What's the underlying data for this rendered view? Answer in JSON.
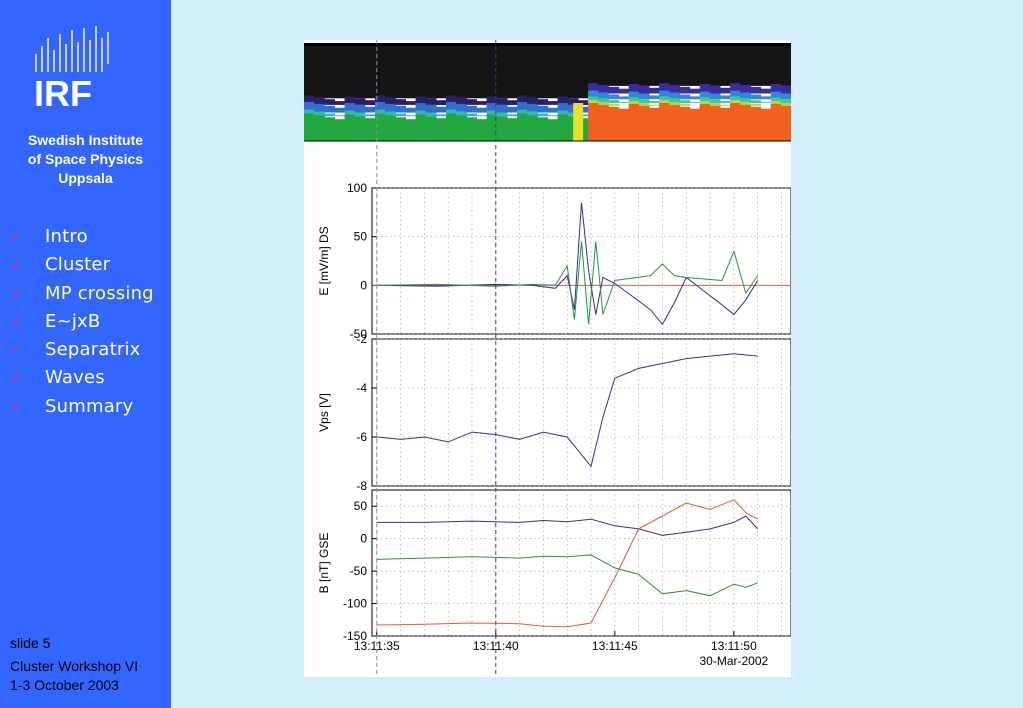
{
  "sidebar": {
    "logo_text": "IRF",
    "institute_lines": [
      "Swedish Institute",
      "of Space Physics",
      "Uppsala"
    ],
    "nav": [
      {
        "label": "Intro",
        "active": false
      },
      {
        "label": "Cluster",
        "active": false
      },
      {
        "label": "MP crossing",
        "active": true
      },
      {
        "label": "E~jxB",
        "active": false
      },
      {
        "label": "Separatrix",
        "active": false
      },
      {
        "label": "Waves",
        "active": false
      },
      {
        "label": "Summary",
        "active": false
      }
    ],
    "check_icon": "check-icon",
    "slide_label": "slide 5",
    "event": "Cluster Workshop VI",
    "dates": "1-3 October 2003"
  },
  "colors": {
    "sidebar_bg": "#3366ff",
    "page_bg": "#d4eefb",
    "active_nav": "#ffff66",
    "check": "#ff2b2b",
    "series_blue": "#3a2c9c",
    "series_green": "#1e9a3a",
    "series_orange": "#ee5a1e"
  },
  "chart_data": [
    {
      "type": "heatmap",
      "title": "",
      "xlabel": "",
      "ylabel": "",
      "x_range_s": [
        0,
        1
      ],
      "description_bands": [
        "black background",
        "green band",
        "red/orange band after crossing"
      ],
      "crossing_fraction": 0.565
    },
    {
      "type": "line",
      "ylabel": "E [mV/m] DS",
      "ylim": [
        -50,
        100
      ],
      "yticks": [
        100,
        50,
        0,
        -50
      ],
      "series": [
        {
          "color": "blue",
          "x": [
            35,
            37.5,
            40,
            41.5,
            42.5,
            43.0,
            43.3,
            43.6,
            43.9,
            44.2,
            44.5,
            45,
            46.5,
            47,
            47.5,
            48,
            49.5,
            50,
            50.5,
            51
          ],
          "y": [
            0,
            -1,
            1,
            0,
            -3,
            10,
            -25,
            85,
            15,
            -30,
            8,
            2,
            -25,
            -40,
            -18,
            8,
            -20,
            -30,
            -15,
            5
          ]
        },
        {
          "color": "green",
          "x": [
            35,
            37.5,
            40,
            41.5,
            42.5,
            43.0,
            43.3,
            43.6,
            43.9,
            44.2,
            44.5,
            45,
            46.5,
            47,
            47.5,
            48,
            49.5,
            50,
            50.5,
            51
          ],
          "y": [
            0,
            1,
            -1,
            1,
            0,
            20,
            -35,
            45,
            -40,
            45,
            -30,
            5,
            10,
            22,
            10,
            8,
            5,
            35,
            -8,
            10
          ]
        }
      ]
    },
    {
      "type": "line",
      "ylabel": "Vps [V]",
      "ylim": [
        -8,
        -2
      ],
      "yticks": [
        -2,
        -4,
        -6,
        -8
      ],
      "series": [
        {
          "color": "blue",
          "x": [
            35,
            36,
            37,
            38,
            39,
            40,
            41,
            42,
            43,
            43.5,
            44,
            44.5,
            45,
            46,
            47,
            48,
            49,
            50,
            51
          ],
          "y": [
            -6.0,
            -6.1,
            -6.0,
            -6.2,
            -5.8,
            -5.9,
            -6.1,
            -5.8,
            -6.0,
            -6.6,
            -7.2,
            -5.2,
            -3.6,
            -3.2,
            -3.0,
            -2.8,
            -2.7,
            -2.6,
            -2.7
          ]
        }
      ]
    },
    {
      "type": "line",
      "ylabel": "B [nT] GSE",
      "ylim": [
        -150,
        75
      ],
      "yticks": [
        50,
        0,
        -50,
        -100,
        -150
      ],
      "series": [
        {
          "color": "blue",
          "x": [
            35,
            37,
            39,
            41,
            42,
            43,
            44,
            45,
            46,
            47,
            48,
            49,
            50,
            50.5,
            51
          ],
          "y": [
            25,
            25,
            27,
            25,
            28,
            26,
            30,
            20,
            15,
            5,
            10,
            15,
            25,
            35,
            15
          ]
        },
        {
          "color": "green",
          "x": [
            35,
            37,
            39,
            41,
            42,
            43,
            44,
            45,
            46,
            47,
            48,
            49,
            50,
            50.5,
            51
          ],
          "y": [
            -32,
            -30,
            -28,
            -30,
            -27,
            -28,
            -25,
            -45,
            -55,
            -85,
            -80,
            -88,
            -70,
            -75,
            -68
          ]
        },
        {
          "color": "orange",
          "x": [
            35,
            37,
            39,
            41,
            42,
            43,
            44,
            45,
            46,
            47,
            48,
            49,
            50,
            50.5,
            51
          ],
          "y": [
            -133,
            -132,
            -130,
            -131,
            -135,
            -136,
            -130,
            -60,
            15,
            35,
            55,
            45,
            60,
            40,
            30
          ]
        }
      ]
    }
  ],
  "x_axis": {
    "xlim": [
      34.8,
      52.4
    ],
    "ticks": [
      {
        "value": 35,
        "label": "13:11:35"
      },
      {
        "value": 40,
        "label": "13:11:40"
      },
      {
        "value": 45,
        "label": "13:11:45"
      },
      {
        "value": 50,
        "label": "13:11:50"
      }
    ],
    "date_label": "30-Mar-2002",
    "marker_lines": [
      35,
      40
    ]
  }
}
